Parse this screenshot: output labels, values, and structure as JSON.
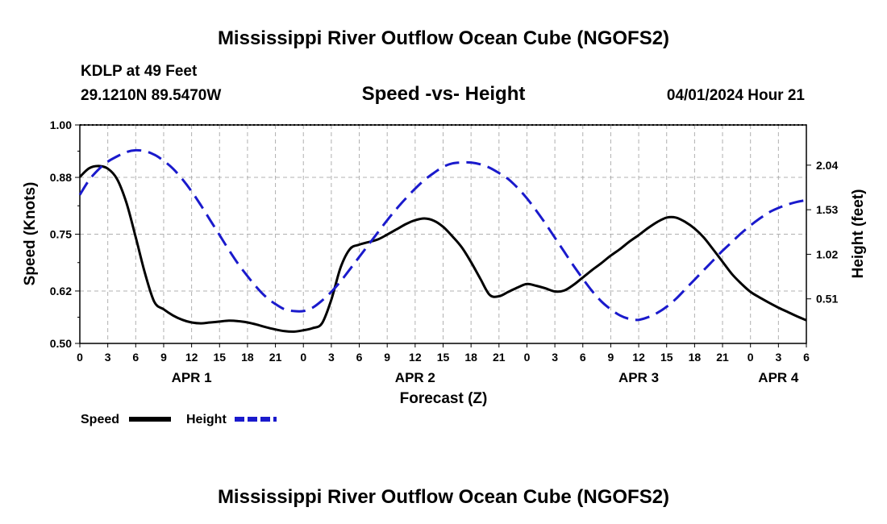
{
  "chart_data": {
    "type": "line",
    "title": "Mississippi River Outflow Ocean Cube (NGOFS2)",
    "station": "KDLP at 49 Feet",
    "location": "29.1210N  89.5470W",
    "subtitle": "Speed -vs- Height",
    "date": "04/01/2024 Hour 21",
    "xlabel": "Forecast (Z)",
    "ylabel_left": "Speed (Knots)",
    "ylabel_right": "Height (feet)",
    "x_range": [
      0,
      78
    ],
    "x_tick_labels": [
      "0",
      "3",
      "6",
      "9",
      "12",
      "15",
      "18",
      "21",
      "0",
      "3",
      "6",
      "9",
      "12",
      "15",
      "18",
      "21",
      "0",
      "3",
      "6",
      "9",
      "12",
      "15",
      "18",
      "21",
      "0",
      "3",
      "6"
    ],
    "day_labels": [
      {
        "label": "APR 1",
        "x": 12
      },
      {
        "label": "APR 2",
        "x": 36
      },
      {
        "label": "APR 3",
        "x": 60
      },
      {
        "label": "APR 4",
        "x": 75
      }
    ],
    "left_axis": {
      "range": [
        0.5,
        1.0
      ],
      "ticks": [
        "0.50",
        "0.62",
        "0.75",
        "0.88",
        "1.00"
      ]
    },
    "right_axis": {
      "range": [
        0.0,
        2.5
      ],
      "ticks": [
        "0.51",
        "1.02",
        "1.53",
        "2.04"
      ]
    },
    "series": [
      {
        "name": "Speed",
        "axis": "left",
        "color": "#000000",
        "dash": "none",
        "x": [
          0,
          1,
          2,
          3,
          4,
          5,
          6,
          7,
          8,
          9,
          10,
          11,
          12,
          13,
          14,
          15,
          16,
          17,
          18,
          19,
          20,
          21,
          22,
          23,
          24,
          25,
          26,
          27,
          28,
          29,
          30,
          31,
          32,
          33,
          34,
          35,
          36,
          37,
          38,
          39,
          40,
          41,
          42,
          43,
          44,
          45,
          46,
          47,
          48,
          49,
          50,
          51,
          52,
          53,
          54,
          55,
          56,
          57,
          58,
          59,
          60,
          61,
          62,
          63,
          64,
          65,
          66,
          67,
          68,
          69,
          70,
          71,
          72,
          73,
          74,
          75,
          76,
          77,
          78
        ],
        "y": [
          0.881,
          0.901,
          0.906,
          0.9,
          0.876,
          0.822,
          0.743,
          0.66,
          0.595,
          0.578,
          0.564,
          0.554,
          0.548,
          0.546,
          0.548,
          0.55,
          0.552,
          0.551,
          0.548,
          0.543,
          0.537,
          0.532,
          0.528,
          0.527,
          0.53,
          0.535,
          0.546,
          0.6,
          0.674,
          0.716,
          0.726,
          0.732,
          0.738,
          0.749,
          0.761,
          0.773,
          0.782,
          0.786,
          0.781,
          0.767,
          0.745,
          0.72,
          0.686,
          0.648,
          0.611,
          0.608,
          0.618,
          0.628,
          0.636,
          0.632,
          0.626,
          0.619,
          0.621,
          0.634,
          0.651,
          0.668,
          0.684,
          0.701,
          0.716,
          0.733,
          0.748,
          0.764,
          0.778,
          0.788,
          0.788,
          0.778,
          0.763,
          0.742,
          0.715,
          0.687,
          0.659,
          0.637,
          0.618,
          0.605,
          0.593,
          0.582,
          0.572,
          0.562,
          0.553
        ]
      },
      {
        "name": "Height",
        "axis": "right",
        "color": "#1a1acc",
        "dash": "18 9",
        "x": [
          0,
          1,
          2,
          3,
          4,
          5,
          6,
          7,
          8,
          9,
          10,
          11,
          12,
          13,
          14,
          15,
          16,
          17,
          18,
          19,
          20,
          21,
          22,
          23,
          24,
          25,
          26,
          27,
          28,
          29,
          30,
          31,
          32,
          33,
          34,
          35,
          36,
          37,
          38,
          39,
          40,
          41,
          42,
          43,
          44,
          45,
          46,
          47,
          48,
          49,
          50,
          51,
          52,
          53,
          54,
          55,
          56,
          57,
          58,
          59,
          60,
          61,
          62,
          63,
          64,
          65,
          66,
          67,
          68,
          69,
          70,
          71,
          72,
          73,
          74,
          75,
          76,
          77,
          78
        ],
        "y": [
          1.7,
          1.87,
          1.99,
          2.08,
          2.14,
          2.19,
          2.21,
          2.2,
          2.16,
          2.09,
          2.0,
          1.88,
          1.74,
          1.58,
          1.41,
          1.24,
          1.07,
          0.91,
          0.77,
          0.64,
          0.53,
          0.45,
          0.39,
          0.37,
          0.37,
          0.41,
          0.49,
          0.59,
          0.71,
          0.85,
          0.99,
          1.13,
          1.27,
          1.41,
          1.54,
          1.66,
          1.77,
          1.87,
          1.95,
          2.02,
          2.06,
          2.07,
          2.07,
          2.05,
          2.01,
          1.95,
          1.88,
          1.78,
          1.66,
          1.52,
          1.37,
          1.21,
          1.05,
          0.89,
          0.74,
          0.6,
          0.48,
          0.39,
          0.32,
          0.28,
          0.27,
          0.3,
          0.35,
          0.42,
          0.51,
          0.62,
          0.73,
          0.84,
          0.95,
          1.06,
          1.16,
          1.26,
          1.35,
          1.43,
          1.5,
          1.55,
          1.59,
          1.62,
          1.64
        ]
      }
    ],
    "legend": {
      "position": "bottom-left",
      "entries": [
        "Speed",
        "Height"
      ]
    },
    "grid": true,
    "footer_title": "Mississippi River Outflow Ocean Cube (NGOFS2)"
  }
}
